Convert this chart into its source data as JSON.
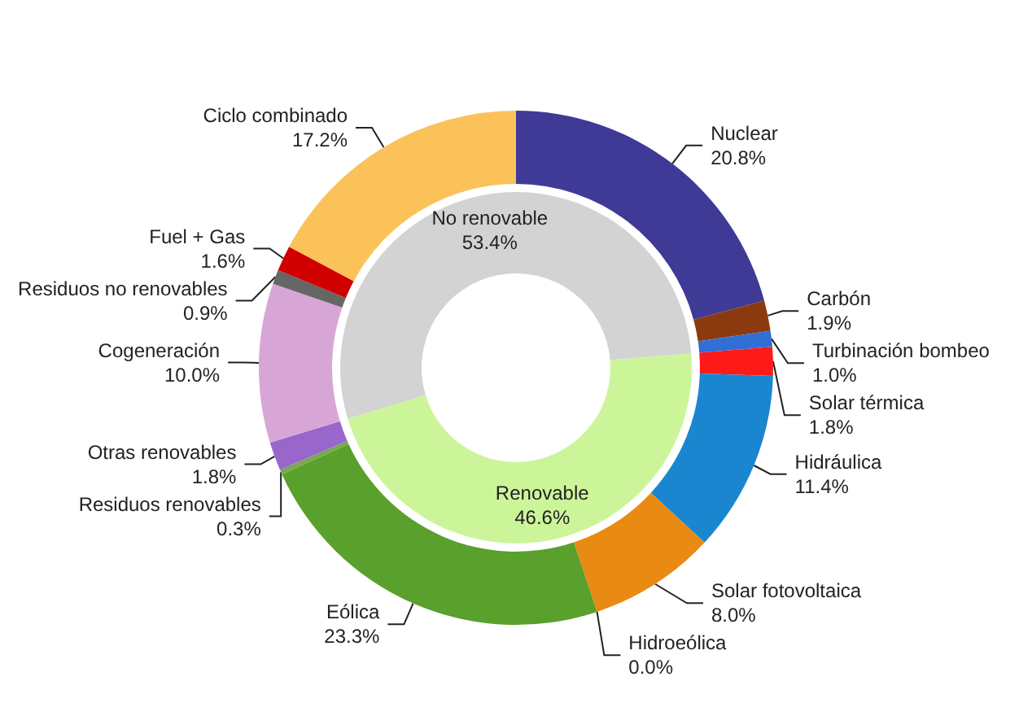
{
  "chart_data": [
    {
      "type": "donut",
      "categories": [
        "No renovable",
        "Renovable"
      ],
      "values": [
        53.4,
        46.6
      ],
      "value_labels": [
        "53.4%",
        "46.6%"
      ],
      "colors": [
        "#d3d3d3",
        "#ccf59a"
      ]
    },
    {
      "type": "donut",
      "categories": [
        "Nuclear",
        "Carbón",
        "Turbinación bombeo",
        "Solar térmica",
        "Hidráulica",
        "Solar fotovoltaica",
        "Hidroeólica",
        "Eólica",
        "Residuos renovables",
        "Otras renovables",
        "Cogeneración",
        "Residuos no renovables",
        "Fuel + Gas",
        "Ciclo combinado"
      ],
      "values": [
        20.8,
        1.9,
        1.0,
        1.8,
        11.4,
        8.0,
        0.0,
        23.3,
        0.3,
        1.8,
        10.0,
        0.9,
        1.6,
        17.2
      ],
      "value_labels": [
        "20.8%",
        "1.9%",
        "1.0%",
        "1.8%",
        "11.4%",
        "8.0%",
        "0.0%",
        "23.3%",
        "0.3%",
        "1.8%",
        "10.0%",
        "0.9%",
        "1.6%",
        "17.2%"
      ],
      "colors": [
        "#3f3a96",
        "#8b3a0f",
        "#2f6fd6",
        "#ff1a1a",
        "#1a86d0",
        "#e98a12",
        "#6fa8dc",
        "#5aa02c",
        "#7aa84e",
        "#9966cc",
        "#d8a6d6",
        "#666666",
        "#d00000",
        "#fbc25a"
      ]
    }
  ]
}
